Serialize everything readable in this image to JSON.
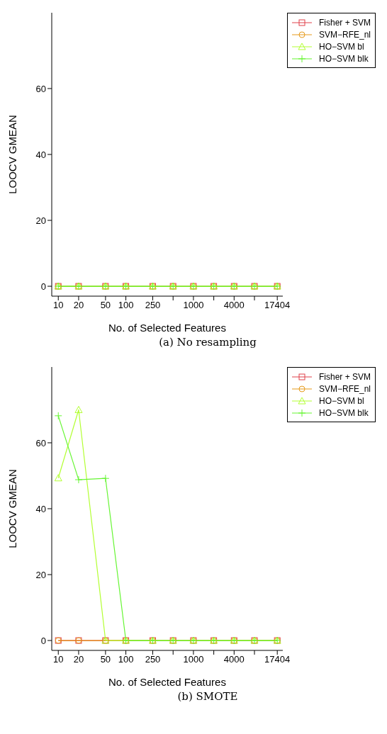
{
  "chart_data": [
    {
      "type": "line",
      "x": [
        10,
        20,
        50,
        100,
        250,
        500,
        1000,
        2000,
        4000,
        8000,
        17404
      ],
      "xlabel": "No. of Selected Features",
      "ylabel": "LOOCV GMEAN",
      "annotations": [
        "(a) No resampling"
      ],
      "xlim": [
        8,
        21000
      ],
      "ylim": [
        -3,
        83
      ],
      "xticks": [
        10,
        20,
        50,
        100,
        250,
        {
          "value": 500,
          "label": null
        },
        1000,
        {
          "value": 2000,
          "label": null
        },
        4000,
        {
          "value": 8000,
          "label": null
        },
        17404
      ],
      "yticks": [
        0,
        20,
        40,
        60
      ],
      "log": "x",
      "grid": false,
      "legend": "top right",
      "series": [
        {
          "name": "Fisher + SVM",
          "color": "#e0404a",
          "marker": "square",
          "values": [
            0,
            0,
            0,
            0,
            0,
            0,
            0,
            0,
            0,
            0,
            0
          ]
        },
        {
          "name": "SVM−RFE_nl",
          "color": "#e69a1a",
          "marker": "circle",
          "values": [
            0,
            0,
            0,
            0,
            0,
            0,
            0,
            0,
            0,
            0,
            0
          ]
        },
        {
          "name": "HO−SVM bl",
          "color": "#b3ff33",
          "marker": "triangle",
          "values": [
            0,
            0,
            0,
            0,
            0,
            0,
            0,
            0,
            0,
            0,
            0
          ]
        },
        {
          "name": "HO−SVM blk",
          "color": "#66f533",
          "marker": "cross",
          "values": [
            0,
            0,
            0,
            0,
            0,
            0,
            0,
            0,
            0,
            0,
            0
          ]
        }
      ]
    },
    {
      "type": "line",
      "x": [
        10,
        20,
        50,
        100,
        250,
        500,
        1000,
        2000,
        4000,
        8000,
        17404
      ],
      "xlabel": "No. of Selected Features",
      "ylabel": "LOOCV GMEAN",
      "annotations": [
        "(b) SMOTE"
      ],
      "xlim": [
        8,
        21000
      ],
      "ylim": [
        -3,
        83
      ],
      "xticks": [
        10,
        20,
        50,
        100,
        250,
        {
          "value": 500,
          "label": null
        },
        1000,
        {
          "value": 2000,
          "label": null
        },
        4000,
        {
          "value": 8000,
          "label": null
        },
        17404
      ],
      "yticks": [
        0,
        20,
        40,
        60
      ],
      "log": "x",
      "grid": false,
      "legend": "top right",
      "series": [
        {
          "name": "Fisher + SVM",
          "color": "#e0404a",
          "marker": "square",
          "values": [
            0,
            0,
            0,
            0,
            0,
            0,
            0,
            0,
            0,
            0,
            0
          ]
        },
        {
          "name": "SVM−RFE_nl",
          "color": "#e69a1a",
          "marker": "circle",
          "values": [
            0,
            0,
            0,
            0,
            0,
            0,
            0,
            0,
            0,
            0,
            0
          ]
        },
        {
          "name": "HO−SVM bl",
          "color": "#b3ff33",
          "marker": "triangle",
          "values": [
            49.3,
            70,
            0,
            0,
            0,
            0,
            0,
            0,
            0,
            0,
            0
          ]
        },
        {
          "name": "HO−SVM blk",
          "color": "#66f533",
          "marker": "cross",
          "values": [
            68.2,
            48.8,
            49.2,
            0,
            0,
            0,
            0,
            0,
            0,
            0,
            0
          ]
        }
      ]
    }
  ]
}
